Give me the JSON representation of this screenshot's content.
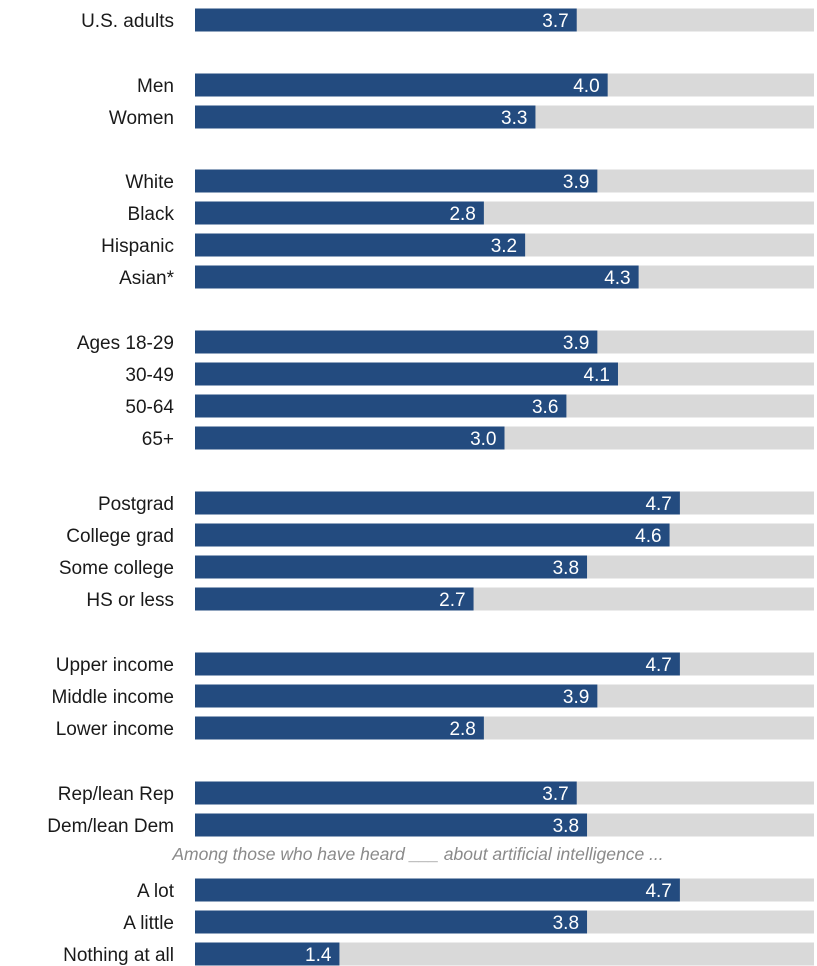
{
  "colors": {
    "bar": "#234b7f",
    "track": "#d9d9d9",
    "value_text": "#ffffff",
    "label_text": "#1a1a1a",
    "note_text": "#8a8a8a"
  },
  "chart_data": {
    "type": "bar",
    "orientation": "horizontal",
    "title": "",
    "xlabel": "",
    "ylabel": "",
    "xlim": [
      0,
      6
    ],
    "grid": false,
    "legend": "none",
    "note": "Among those who have heard ___ about artificial intelligence ...",
    "categories": [
      "U.S. adults",
      "Men",
      "Women",
      "White",
      "Black",
      "Hispanic",
      "Asian*",
      "Ages 18-29",
      "30-49",
      "50-64",
      "65+",
      "Postgrad",
      "College grad",
      "Some college",
      "HS or less",
      "Upper income",
      "Middle income",
      "Lower income",
      "Rep/lean Rep",
      "Dem/lean Dem",
      "A lot",
      "A little",
      "Nothing at all"
    ],
    "values": [
      3.7,
      4.0,
      3.3,
      3.9,
      2.8,
      3.2,
      4.3,
      3.9,
      4.1,
      3.6,
      3.0,
      4.7,
      4.6,
      3.8,
      2.7,
      4.7,
      3.9,
      2.8,
      3.7,
      3.8,
      4.7,
      3.8,
      1.4
    ],
    "value_labels": [
      "3.7",
      "4.0",
      "3.3",
      "3.9",
      "2.8",
      "3.2",
      "4.3",
      "3.9",
      "4.1",
      "3.6",
      "3.0",
      "4.7",
      "4.6",
      "3.8",
      "2.7",
      "4.7",
      "3.9",
      "2.8",
      "3.7",
      "3.8",
      "4.7",
      "3.8",
      "1.4"
    ]
  }
}
